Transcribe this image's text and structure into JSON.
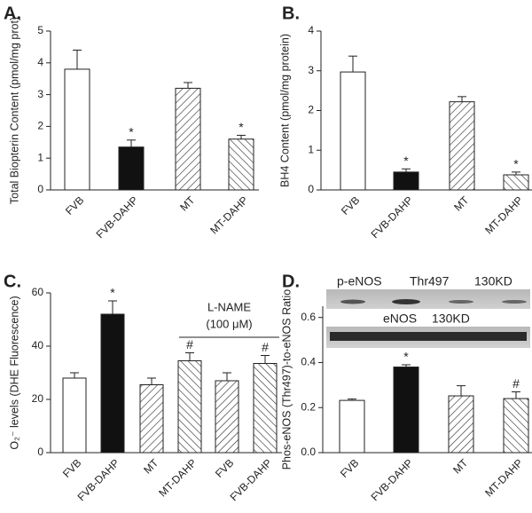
{
  "chart_data": [
    {
      "type": "bar",
      "panel_label": "A.",
      "y_label": "Total Biopterin Content (pmol/mg prot)",
      "categories": [
        "FVB",
        "FVB-DAHP",
        "MT",
        "MT-DAHP"
      ],
      "values": [
        3.8,
        1.35,
        3.2,
        1.6
      ],
      "errors": [
        0.6,
        0.22,
        0.18,
        0.12
      ],
      "fills": [
        "white",
        "black",
        "hatch-right",
        "hatch-left"
      ],
      "markers": [
        null,
        "*",
        null,
        "*"
      ],
      "ylim": [
        0,
        5
      ],
      "yticks": [
        0,
        1,
        2,
        3,
        4,
        5
      ]
    },
    {
      "type": "bar",
      "panel_label": "B.",
      "y_label": "BH4 Content (pmol/mg protein)",
      "categories": [
        "FVB",
        "FVB-DAHP",
        "MT",
        "MT-DAHP"
      ],
      "values": [
        2.97,
        0.45,
        2.22,
        0.38
      ],
      "errors": [
        0.4,
        0.08,
        0.13,
        0.07
      ],
      "fills": [
        "white",
        "black",
        "hatch-right",
        "hatch-left"
      ],
      "markers": [
        null,
        "*",
        null,
        "*"
      ],
      "ylim": [
        0,
        4
      ],
      "yticks": [
        0,
        1,
        2,
        3,
        4
      ]
    },
    {
      "type": "bar",
      "panel_label": "C.",
      "y_label": "O₂⁻ levels (DHE Fluorescence)",
      "categories": [
        "FVB",
        "FVB-DAHP",
        "MT",
        "MT-DAHP",
        "FVB",
        "FVB-DAHP"
      ],
      "values": [
        28,
        52,
        25.5,
        34.5,
        27,
        33.5
      ],
      "errors": [
        2,
        5,
        2.5,
        3,
        3,
        3
      ],
      "fills": [
        "white",
        "black",
        "hatch-right",
        "hatch-left",
        "hatch-right",
        "hatch-left"
      ],
      "markers": [
        null,
        "*",
        null,
        "#",
        null,
        "#"
      ],
      "group_label": [
        "L-NAME",
        "(100 μM)"
      ],
      "ylim": [
        0,
        60
      ],
      "yticks": [
        0,
        20,
        40,
        60
      ]
    },
    {
      "type": "bar",
      "panel_label": "D.",
      "y_label": "Phos-eNOS (Thr497)-to-eNOS Ratio",
      "categories": [
        "FVB",
        "FVB-DAHP",
        "MT",
        "MT-DAHP"
      ],
      "values": [
        0.232,
        0.38,
        0.252,
        0.24
      ],
      "errors": [
        0.006,
        0.01,
        0.045,
        0.03
      ],
      "fills": [
        "white",
        "black",
        "hatch-right",
        "hatch-left"
      ],
      "markers": [
        null,
        "*",
        null,
        "#"
      ],
      "blot_labels": [
        "p-eNOS",
        "Thr497",
        "130KD",
        "eNOS",
        "130KD"
      ],
      "ylim": [
        0,
        0.65
      ],
      "yticks": [
        {
          "value": 0,
          "label": "0.0"
        },
        0.2,
        0.4,
        0.6
      ]
    }
  ]
}
